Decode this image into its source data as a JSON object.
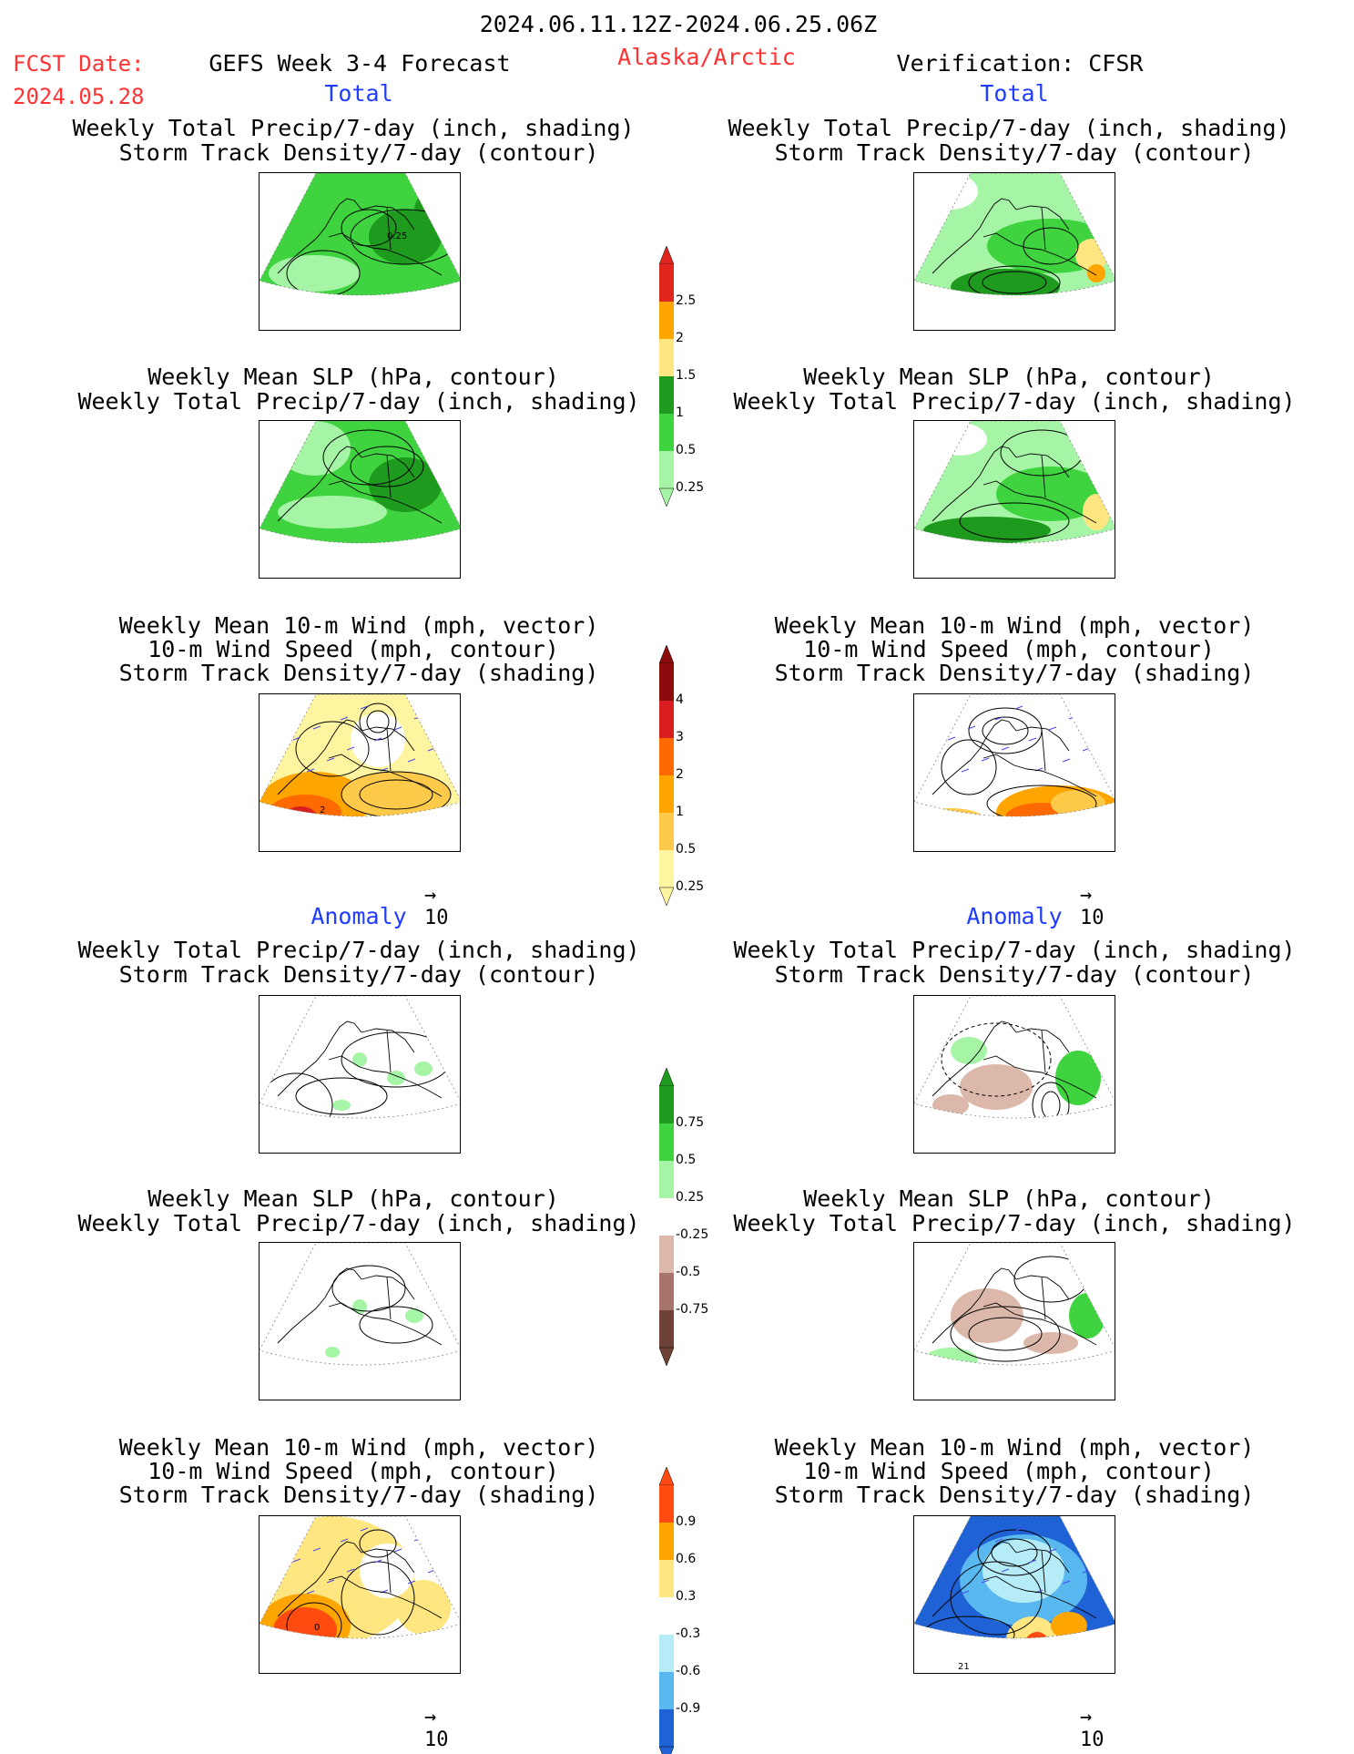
{
  "header": {
    "period": "2024.06.11.12Z-2024.06.25.06Z",
    "fcst_label": "FCST Date:",
    "fcst_date": "2024.05.28",
    "model": "GEFS Week 3-4 Forecast",
    "region": "Alaska/Arctic",
    "verification": "Verification: CFSR"
  },
  "sections": {
    "total": "Total",
    "anomaly": "Anomaly"
  },
  "panel_titles": {
    "precip_storm": [
      "Weekly Total Precip/7-day (inch, shading)",
      "Storm Track Density/7-day (contour)"
    ],
    "slp_precip": [
      "Weekly Mean SLP (hPa, contour)",
      "Weekly Total Precip/7-day (inch, shading)"
    ],
    "wind_storm": [
      "Weekly Mean 10-m Wind (mph, vector)",
      "10-m Wind Speed (mph, contour)",
      "Storm Track Density/7-day (shading)"
    ]
  },
  "vector_reference": "10",
  "colorbars": {
    "precip_total": {
      "labels": [
        "2.5",
        "2",
        "1.5",
        "1",
        "0.5",
        "0.25"
      ],
      "colors": [
        "#e0261c",
        "#ffa500",
        "#ffe680",
        "#1e9b1e",
        "#3fd43f",
        "#a6f5a6"
      ]
    },
    "storm_total": {
      "labels": [
        "4",
        "3",
        "2",
        "1",
        "0.5",
        "0.25"
      ],
      "colors": [
        "#8b0a0a",
        "#d81e1e",
        "#ff6a00",
        "#ffa500",
        "#ffc94a",
        "#fff5a0"
      ]
    },
    "precip_anom": {
      "labels": [
        "0.75",
        "0.5",
        "0.25",
        "-0.25",
        "-0.5",
        "-0.75"
      ],
      "colors": [
        "#1e9b1e",
        "#3fd43f",
        "#a6f5a6",
        "#ffffff",
        "#dcb8aa",
        "#a7756a",
        "#6e4236"
      ]
    },
    "storm_anom": {
      "labels": [
        "0.9",
        "0.6",
        "0.3",
        "-0.3",
        "-0.6",
        "-0.9"
      ],
      "colors": [
        "#ff4a10",
        "#ffa500",
        "#ffe680",
        "#ffffff",
        "#b5ecf7",
        "#5ab8f0",
        "#1f62d6"
      ]
    },
    "colors_hint": "top-to-bottom shading colors"
  },
  "chart_data": [
    {
      "type": "heatmap",
      "panel": "total-left-precip-storm",
      "contour_label": "0.25"
    },
    {
      "type": "heatmap",
      "panel": "total-right-precip-storm"
    },
    {
      "type": "heatmap",
      "panel": "total-left-slp-precip"
    },
    {
      "type": "heatmap",
      "panel": "total-right-slp-precip"
    },
    {
      "type": "heatmap",
      "panel": "total-left-wind-storm",
      "contour_label": "2"
    },
    {
      "type": "heatmap",
      "panel": "total-right-wind-storm"
    },
    {
      "type": "heatmap",
      "panel": "anom-left-precip-storm"
    },
    {
      "type": "heatmap",
      "panel": "anom-right-precip-storm"
    },
    {
      "type": "heatmap",
      "panel": "anom-left-slp-precip"
    },
    {
      "type": "heatmap",
      "panel": "anom-right-slp-precip"
    },
    {
      "type": "heatmap",
      "panel": "anom-left-wind-storm",
      "contour_label": "0"
    },
    {
      "type": "heatmap",
      "panel": "anom-right-wind-storm",
      "contour_label": "21"
    }
  ]
}
